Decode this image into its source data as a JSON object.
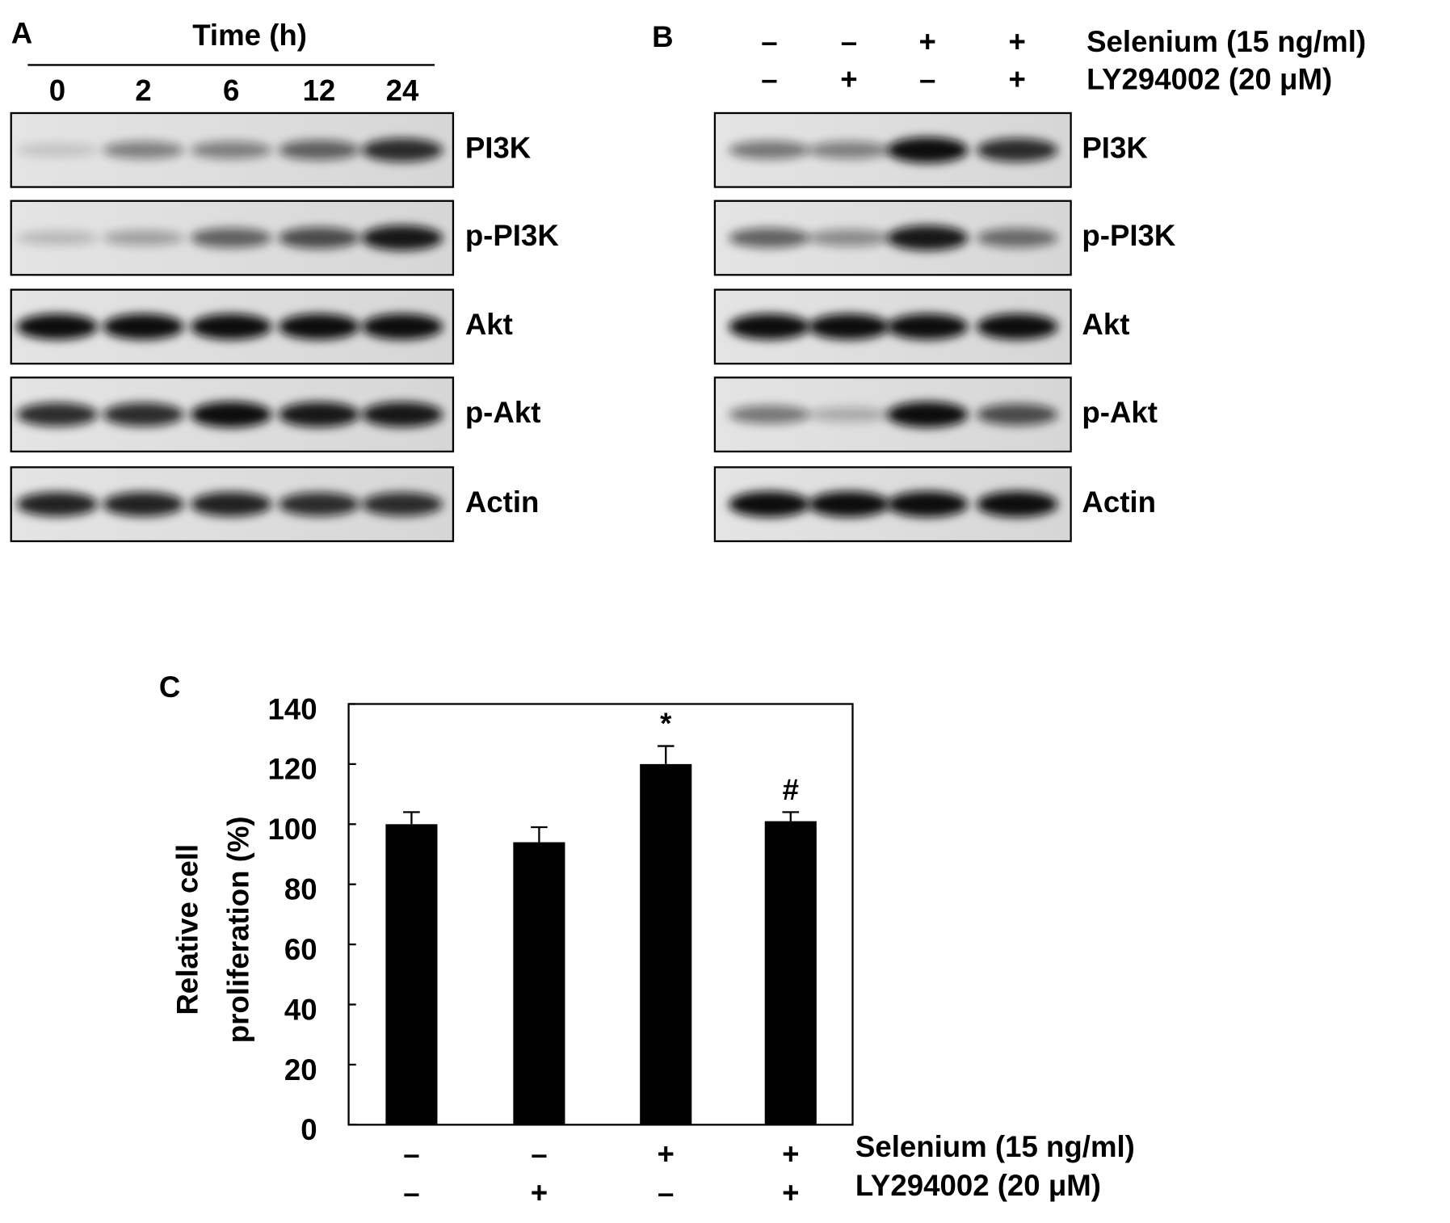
{
  "panel_a": {
    "label": "A",
    "axis_title": "Time (h)",
    "lanes": [
      "0",
      "2",
      "6",
      "12",
      "24"
    ],
    "proteins": [
      "PI3K",
      "p-PI3K",
      "Akt",
      "p-Akt",
      "Actin"
    ]
  },
  "panel_b": {
    "label": "B",
    "treatments": [
      {
        "name": "Selenium (15 ng/ml)",
        "signs": [
          "–",
          "–",
          "+",
          "+"
        ]
      },
      {
        "name": "LY294002 (20 μM)",
        "signs": [
          "–",
          "+",
          "–",
          "+"
        ]
      }
    ],
    "proteins": [
      "PI3K",
      "p-PI3K",
      "Akt",
      "p-Akt",
      "Actin"
    ]
  },
  "chart_data": {
    "type": "bar",
    "panel_label": "C",
    "y_label": [
      "Relative cell",
      "proliferation (%)"
    ],
    "treatments": [
      {
        "name": "Selenium (15 ng/ml)",
        "signs": [
          "–",
          "–",
          "+",
          "+"
        ]
      },
      {
        "name": "LY294002 (20 μM)",
        "signs": [
          "–",
          "+",
          "–",
          "+"
        ]
      }
    ],
    "values": [
      100,
      94,
      120,
      101
    ],
    "errors": [
      4,
      5,
      6,
      3
    ],
    "annotations": [
      null,
      null,
      "*",
      "#"
    ],
    "color": "#000000",
    "ylim": [
      0,
      140
    ],
    "yticks": [
      0,
      20,
      40,
      60,
      80,
      100,
      120,
      140
    ]
  }
}
